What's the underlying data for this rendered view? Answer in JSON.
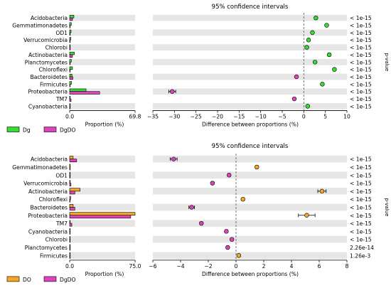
{
  "chart_data": [
    {
      "type": "extended-error-bar",
      "ci_title": "95% confidence intervals",
      "bar_xlabel": "Proportion (%)",
      "diff_xlabel": "Difference between proportions (%)",
      "pvalue_label": "p-value",
      "bar_xlim": [
        0,
        69.8
      ],
      "bar_ticks": [
        "0.0",
        "69.8"
      ],
      "diff_xlim": [
        -35,
        10
      ],
      "diff_ticks": [
        -35,
        -30,
        -25,
        -20,
        -15,
        -10,
        -5,
        0,
        5,
        10
      ],
      "legend": [
        {
          "name": "Dg",
          "color": "#33dd33"
        },
        {
          "name": "DgDO",
          "color": "#dd44bb"
        }
      ],
      "categories": [
        "Acidobacteria",
        "Gemmatimonadetes",
        "OD1",
        "Verrucomicrobia",
        "Chlorobi",
        "Actinobacteria",
        "Planctomycetes",
        "Chloroflexi",
        "Bacteroidetes",
        "Firmicutes",
        "Proteobacteria",
        "TM7",
        "Cyanobacteria"
      ],
      "series": [
        {
          "name": "Dg",
          "color": "#33dd33",
          "values": [
            4.5,
            1.8,
            1.5,
            1.2,
            0.6,
            5.0,
            1.8,
            3.0,
            2.5,
            2.0,
            17.5,
            0.3,
            0.6
          ]
        },
        {
          "name": "DgDO",
          "color": "#dd44bb",
          "values": [
            3.0,
            0.3,
            0.4,
            0.3,
            0.1,
            3.0,
            0.6,
            0.5,
            3.4,
            0.5,
            32.0,
            1.5,
            0.2
          ]
        }
      ],
      "differences": [
        2.8,
        5.3,
        2.0,
        1.1,
        0.7,
        5.9,
        2.6,
        7.1,
        -1.7,
        4.3,
        -30.5,
        -2.2,
        0.9
      ],
      "ci_halfwidth": [
        0.25,
        0.2,
        0.2,
        0.2,
        0.15,
        0.3,
        0.2,
        0.25,
        0.25,
        0.2,
        0.8,
        0.2,
        0.15
      ],
      "pvalues": [
        "< 1e-15",
        "< 1e-15",
        "< 1e-15",
        "< 1e-15",
        "< 1e-15",
        "< 1e-15",
        "< 1e-15",
        "< 1e-15",
        "< 1e-15",
        "< 1e-15",
        "< 1e-15",
        "< 1e-15",
        "< 1e-15"
      ]
    },
    {
      "type": "extended-error-bar",
      "ci_title": "95% confidence intervals",
      "bar_xlabel": "Proportion (%)",
      "diff_xlabel": "Difference between proportions (%)",
      "pvalue_label": "p-value",
      "bar_xlim": [
        0,
        75.0
      ],
      "bar_ticks": [
        "0.0",
        "75.0"
      ],
      "diff_xlim": [
        -6,
        8
      ],
      "diff_ticks": [
        -6,
        -4,
        -2,
        0,
        2,
        4,
        6,
        8
      ],
      "legend": [
        {
          "name": "DO",
          "color": "#f5a623"
        },
        {
          "name": "DgDO",
          "color": "#dd44bb"
        }
      ],
      "categories": [
        "Acidobacteria",
        "Gemmatimonadetes",
        "OD1",
        "Verrucomicrobia",
        "Actinobacteria",
        "Chloroflexi",
        "Bacteroidetes",
        "Proteobacteria",
        "TM7",
        "Cyanobacteria",
        "Chlorobi",
        "Planctomycetes",
        "Firmicutes"
      ],
      "series": [
        {
          "name": "DO",
          "color": "#f5a623",
          "values": [
            4.0,
            0.5,
            0.0,
            0.5,
            12.0,
            1.2,
            4.0,
            75.0,
            0.2,
            0.0,
            0.0,
            0.0,
            0.5
          ]
        },
        {
          "name": "DgDO",
          "color": "#dd44bb",
          "values": [
            8.0,
            0.2,
            0.5,
            1.5,
            6.0,
            0.5,
            6.0,
            70.0,
            2.5,
            0.5,
            0.4,
            0.5,
            0.2
          ]
        }
      ],
      "differences": [
        -4.5,
        1.5,
        -0.5,
        -1.7,
        6.2,
        0.5,
        -3.2,
        5.1,
        -2.5,
        -0.7,
        -0.3,
        -0.6,
        0.2
      ],
      "ci_halfwidth": [
        0.25,
        0.1,
        0.1,
        0.1,
        0.3,
        0.1,
        0.2,
        0.6,
        0.1,
        0.1,
        0.1,
        0.1,
        0.1
      ],
      "pvalues": [
        "< 1e-15",
        "< 1e-15",
        "< 1e-15",
        "< 1e-15",
        "< 1e-15",
        "< 1e-15",
        "< 1e-15",
        "< 1e-15",
        "< 1e-15",
        "< 1e-15",
        "< 1e-15",
        "2.26e-14",
        "1.26e-3"
      ]
    }
  ]
}
